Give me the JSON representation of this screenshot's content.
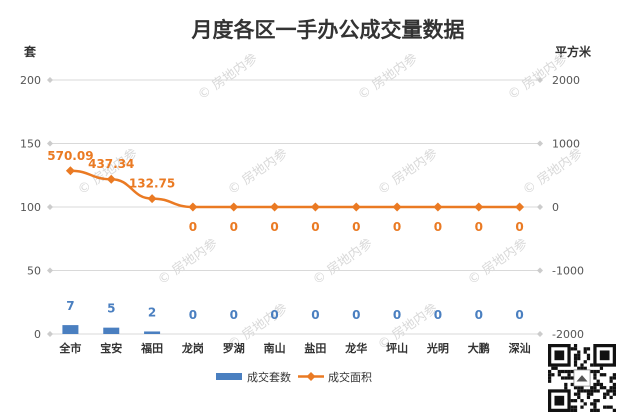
{
  "chart_data": {
    "type": "bar",
    "title": "月度各区一手办公成交量数据",
    "categories": [
      "全市",
      "宝安",
      "福田",
      "龙岗",
      "罗湖",
      "南山",
      "盐田",
      "龙华",
      "坪山",
      "光明",
      "大鹏",
      "深汕"
    ],
    "y_left": {
      "label": "套",
      "ylim": [
        0,
        200
      ],
      "ticks": [
        "0",
        "50",
        "100",
        "150",
        "200"
      ]
    },
    "y_right": {
      "label": "平方米",
      "ylim": [
        -2000,
        2000
      ],
      "ticks": [
        "-2000",
        "-1000",
        "0",
        "1000",
        "2000"
      ]
    },
    "series": [
      {
        "name": "成交套数",
        "type": "bar",
        "axis": "left",
        "values": [
          7,
          5,
          2,
          0,
          0,
          0,
          0,
          0,
          0,
          0,
          0,
          0
        ],
        "labels": [
          "7",
          "5",
          "2",
          "0",
          "0",
          "0",
          "0",
          "0",
          "0",
          "0",
          "0",
          "0"
        ],
        "color": "#4a7fc0"
      },
      {
        "name": "成交面积",
        "type": "line",
        "axis": "right",
        "values": [
          570.09,
          437.34,
          132.75,
          0,
          0,
          0,
          0,
          0,
          0,
          0,
          0,
          0
        ],
        "labels": [
          "570.09",
          "437.34",
          "132.75",
          "0",
          "0",
          "0",
          "0",
          "0",
          "0",
          "0",
          "0",
          "0"
        ],
        "color": "#ea7a23"
      }
    ],
    "grid": true,
    "legend": "bottom-center"
  },
  "watermark": "房地内参"
}
